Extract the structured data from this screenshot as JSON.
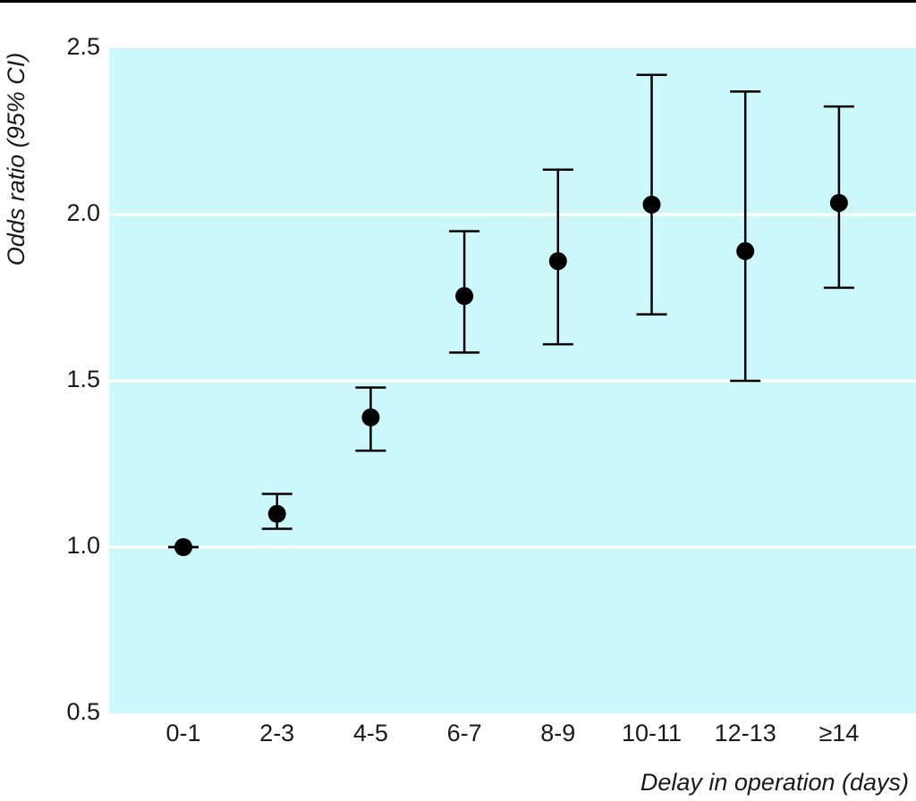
{
  "chart_data": {
    "type": "errorbar",
    "x_label": "Delay in operation (days)",
    "y_label": "Odds ratio (95% CI)",
    "categories": [
      "0-1",
      "2-3",
      "4-5",
      "6-7",
      "8-9",
      "10-11",
      "12-13",
      "≥14"
    ],
    "series": [
      {
        "color": "#000000",
        "values": [
          1.0,
          1.1,
          1.39,
          1.755,
          1.86,
          2.03,
          1.89,
          2.035
        ],
        "lower": [
          1.0,
          1.055,
          1.29,
          1.585,
          1.61,
          1.7,
          1.5,
          1.78
        ],
        "upper": [
          1.0,
          1.16,
          1.48,
          1.95,
          2.135,
          2.42,
          2.37,
          2.325
        ]
      }
    ],
    "ylim": [
      0.5,
      2.5
    ],
    "yticks": [
      0.5,
      {
        "value": 1,
        "label": "1.0"
      },
      1.5,
      {
        "value": 2,
        "label": "2.0"
      },
      2.5
    ],
    "grid": true,
    "plot_background": "#ccf8fb"
  }
}
